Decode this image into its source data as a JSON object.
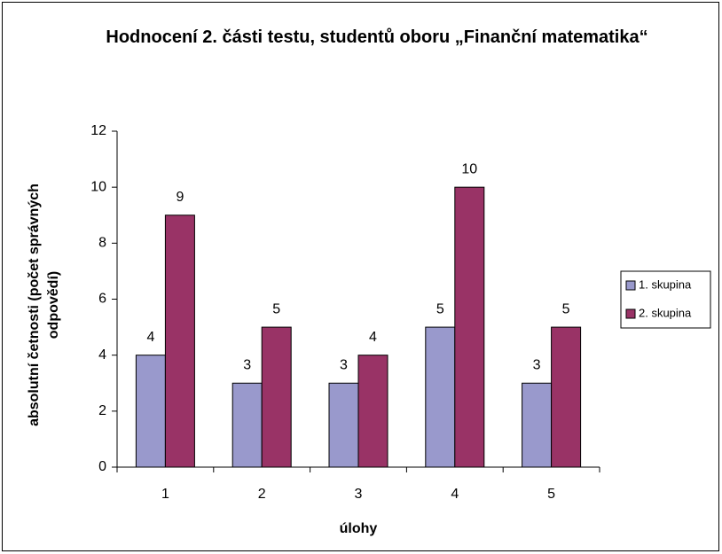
{
  "chart_data": {
    "type": "bar",
    "title": "Hodnocení 2. části testu, studentů oboru „Finanční matematika“",
    "x_label": "úlohy",
    "y_label": "absolutní četnosti (počet správných odpovědí)",
    "categories": [
      "1",
      "2",
      "3",
      "4",
      "5"
    ],
    "series": [
      {
        "name": "1. skupina",
        "color": "#9999cc",
        "values": [
          4,
          3,
          3,
          5,
          3
        ]
      },
      {
        "name": "2. skupina",
        "color": "#993366",
        "values": [
          9,
          5,
          4,
          10,
          5
        ]
      }
    ],
    "ylim": [
      0,
      12
    ],
    "yticks": [
      0,
      2,
      4,
      6,
      8,
      10,
      12
    ],
    "grid": false,
    "legend": "right"
  }
}
